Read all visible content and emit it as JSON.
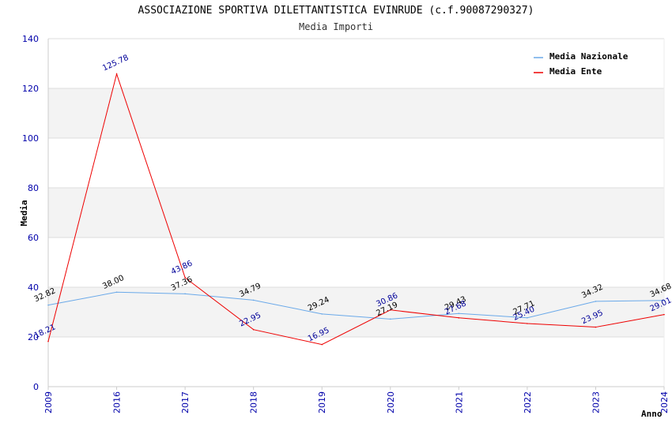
{
  "chart_data": {
    "type": "line",
    "title": "ASSOCIAZIONE SPORTIVA DILETTANTISTICA EVINRUDE (c.f.90087290327)",
    "subtitle": "Media Importi",
    "xlabel": "Anno",
    "ylabel": "Media",
    "ylim": [
      0,
      140
    ],
    "yticks": [
      0,
      20,
      40,
      60,
      80,
      100,
      120,
      140
    ],
    "grid": true,
    "legend_position": "top-right",
    "categories": [
      "2009",
      "2016",
      "2017",
      "2018",
      "2019",
      "2020",
      "2021",
      "2022",
      "2023",
      "2024"
    ],
    "series": [
      {
        "name": "Media Nazionale",
        "color": "#6aa9e9",
        "values": [
          32.82,
          38.0,
          37.36,
          34.79,
          29.24,
          27.19,
          29.43,
          27.71,
          34.32,
          34.68
        ],
        "labels": [
          "32.82",
          "38.00",
          "37.36",
          "34.79",
          "29.24",
          "27.19",
          "29.43",
          "27.71",
          "34.32",
          "34.68"
        ]
      },
      {
        "name": "Media Ente",
        "color": "#ee0000",
        "values": [
          18.21,
          125.78,
          43.86,
          22.95,
          16.95,
          30.86,
          27.68,
          25.4,
          23.95,
          29.01
        ],
        "labels": [
          "18.21",
          "125.78",
          "43.86",
          "22.95",
          "16.95",
          "30.86",
          "27.68",
          "25.40",
          "23.95",
          "29.01"
        ]
      }
    ]
  }
}
